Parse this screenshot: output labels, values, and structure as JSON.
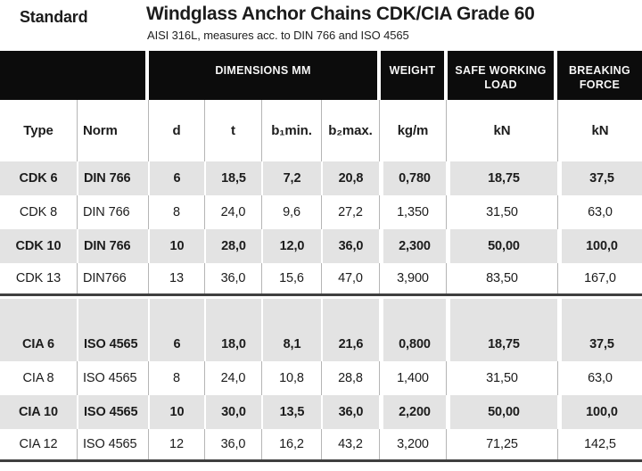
{
  "header": {
    "standard": "Standard",
    "title": "Windglass Anchor Chains CDK/CIA Grade 60",
    "subtitle": "AISI 316L, measures acc. to DIN 766 and ISO 4565"
  },
  "table": {
    "band": {
      "blank": "",
      "dimensions": "DIMENSIONS MM",
      "weight": "WEIGHT",
      "safe_working_load": "SAFE WORKING LOAD",
      "breaking_force": "BREAKING FORCE"
    },
    "columns": [
      "Type",
      "Norm",
      "d",
      "t",
      "b₁min.",
      "b₂max.",
      "kg/m",
      "kN",
      "kN"
    ],
    "groups": [
      {
        "name": "CDK",
        "rows": [
          {
            "shaded": true,
            "cells": [
              "CDK 6",
              "DIN 766",
              "6",
              "18,5",
              "7,2",
              "20,8",
              "0,780",
              "18,75",
              "37,5"
            ]
          },
          {
            "shaded": false,
            "cells": [
              "CDK 8",
              "DIN 766",
              "8",
              "24,0",
              "9,6",
              "27,2",
              "1,350",
              "31,50",
              "63,0"
            ]
          },
          {
            "shaded": true,
            "cells": [
              "CDK 10",
              "DIN 766",
              "10",
              "28,0",
              "12,0",
              "36,0",
              "2,300",
              "50,00",
              "100,0"
            ]
          },
          {
            "shaded": false,
            "cells": [
              "CDK 13",
              "DIN766",
              "13",
              "36,0",
              "15,6",
              "47,0",
              "3,900",
              "83,50",
              "167,0"
            ]
          }
        ]
      },
      {
        "name": "CIA",
        "rows": [
          {
            "shaded": true,
            "cells": [
              "CIA 6",
              "ISO 4565",
              "6",
              "18,0",
              "8,1",
              "21,6",
              "0,800",
              "18,75",
              "37,5"
            ]
          },
          {
            "shaded": false,
            "cells": [
              "CIA 8",
              "ISO 4565",
              "8",
              "24,0",
              "10,8",
              "28,8",
              "1,400",
              "31,50",
              "63,0"
            ]
          },
          {
            "shaded": true,
            "cells": [
              "CIA 10",
              "ISO 4565",
              "10",
              "30,0",
              "13,5",
              "36,0",
              "2,200",
              "50,00",
              "100,0"
            ]
          },
          {
            "shaded": false,
            "cells": [
              "CIA 12",
              "ISO 4565",
              "12",
              "36,0",
              "16,2",
              "43,2",
              "3,200",
              "71,25",
              "142,5"
            ]
          }
        ]
      }
    ]
  },
  "colors": {
    "band_background": "#0c0c0c",
    "band_text": "#f7f7f7",
    "shaded_row": "#e3e3e3",
    "divider": "#b5b5b5",
    "rule": "#3f3f3f",
    "text": "#1c1c1c"
  }
}
